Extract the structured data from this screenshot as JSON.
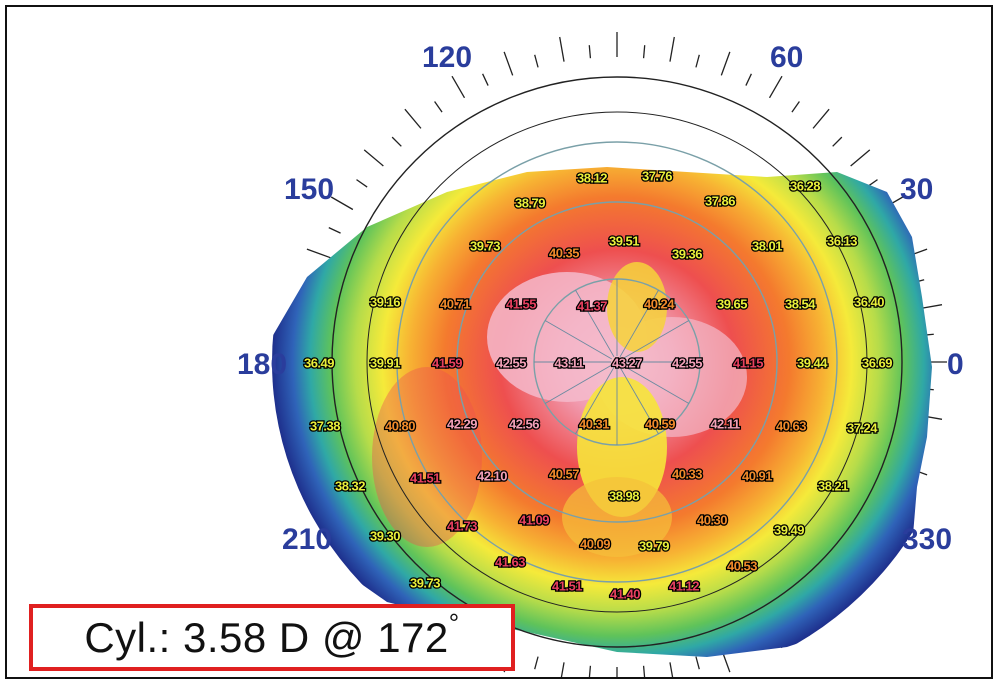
{
  "cylinder": {
    "text": "Cyl.: 3.58 D @ 172",
    "degree_sign": "°"
  },
  "axis_labels": [
    {
      "text": "120",
      "angle": 120
    },
    {
      "text": "60",
      "angle": 60
    },
    {
      "text": "150",
      "angle": 150
    },
    {
      "text": "30",
      "angle": 30
    },
    {
      "text": "180",
      "angle": 180
    },
    {
      "text": "0",
      "angle": 0
    },
    {
      "text": "210",
      "angle": 210
    },
    {
      "text": "330",
      "angle": 330
    }
  ],
  "readings": [
    {
      "v": "38.12",
      "c": "#e9ef3a"
    },
    {
      "v": "37.76",
      "c": "#e9ef3a"
    },
    {
      "v": "36.28",
      "c": "#e9ef3a"
    },
    {
      "v": "38.79",
      "c": "#e9ef3a"
    },
    {
      "v": "37.86",
      "c": "#e9ef3a"
    },
    {
      "v": "39.73",
      "c": "#e9ef3a"
    },
    {
      "v": "40.35",
      "c": "#f08a2a"
    },
    {
      "v": "39.51",
      "c": "#e9ef3a"
    },
    {
      "v": "39.36",
      "c": "#e9ef3a"
    },
    {
      "v": "38.01",
      "c": "#e9ef3a"
    },
    {
      "v": "36.13",
      "c": "#e9ef3a"
    },
    {
      "v": "39.16",
      "c": "#e9ef3a"
    },
    {
      "v": "40.71",
      "c": "#f08a2a"
    },
    {
      "v": "41.55",
      "c": "#e84060"
    },
    {
      "v": "41.37",
      "c": "#e84060"
    },
    {
      "v": "40.24",
      "c": "#f08a2a"
    },
    {
      "v": "39.65",
      "c": "#e9ef3a"
    },
    {
      "v": "38.54",
      "c": "#e9ef3a"
    },
    {
      "v": "36.40",
      "c": "#e9ef3a"
    },
    {
      "v": "36.49",
      "c": "#e9ef3a"
    },
    {
      "v": "39.91",
      "c": "#e9ef3a"
    },
    {
      "v": "41.59",
      "c": "#e84060"
    },
    {
      "v": "42.55",
      "c": "#f2a0b8"
    },
    {
      "v": "43.11",
      "c": "#f2a0b8"
    },
    {
      "v": "43.27",
      "c": "#f2a0b8"
    },
    {
      "v": "42.55",
      "c": "#f2a0b8"
    },
    {
      "v": "41.15",
      "c": "#e84060"
    },
    {
      "v": "39.44",
      "c": "#e9ef3a"
    },
    {
      "v": "36.69",
      "c": "#e9ef3a"
    },
    {
      "v": "37.38",
      "c": "#e9ef3a"
    },
    {
      "v": "40.80",
      "c": "#f08a2a"
    },
    {
      "v": "42.29",
      "c": "#f2a0b8"
    },
    {
      "v": "42.56",
      "c": "#f2a0b8"
    },
    {
      "v": "40.31",
      "c": "#f08a2a"
    },
    {
      "v": "40.59",
      "c": "#f08a2a"
    },
    {
      "v": "42.11",
      "c": "#f2a0b8"
    },
    {
      "v": "40.63",
      "c": "#f08a2a"
    },
    {
      "v": "37.24",
      "c": "#e9ef3a"
    },
    {
      "v": "38.32",
      "c": "#e9ef3a"
    },
    {
      "v": "41.51",
      "c": "#e84060"
    },
    {
      "v": "42.10",
      "c": "#f2a0b8"
    },
    {
      "v": "40.57",
      "c": "#f08a2a"
    },
    {
      "v": "40.33",
      "c": "#f08a2a"
    },
    {
      "v": "40.91",
      "c": "#f08a2a"
    },
    {
      "v": "38.21",
      "c": "#e9ef3a"
    },
    {
      "v": "38.98",
      "c": "#e9ef3a"
    },
    {
      "v": "39.30",
      "c": "#e9ef3a"
    },
    {
      "v": "41.73",
      "c": "#e84060"
    },
    {
      "v": "41.09",
      "c": "#e84060"
    },
    {
      "v": "40.30",
      "c": "#f08a2a"
    },
    {
      "v": "39.49",
      "c": "#e9ef3a"
    },
    {
      "v": "40.09",
      "c": "#f08a2a"
    },
    {
      "v": "39.79",
      "c": "#e9ef3a"
    },
    {
      "v": "41.63",
      "c": "#e84060"
    },
    {
      "v": "40.53",
      "c": "#f08a2a"
    },
    {
      "v": "39.73",
      "c": "#e9ef3a"
    },
    {
      "v": "41.51",
      "c": "#e84060"
    },
    {
      "v": "41.40",
      "c": "#e84060"
    },
    {
      "v": "41.12",
      "c": "#e84060"
    }
  ],
  "colors": {
    "frame": "#111111",
    "axis_label": "#2a3d9c",
    "callout_border": "#e02020"
  }
}
